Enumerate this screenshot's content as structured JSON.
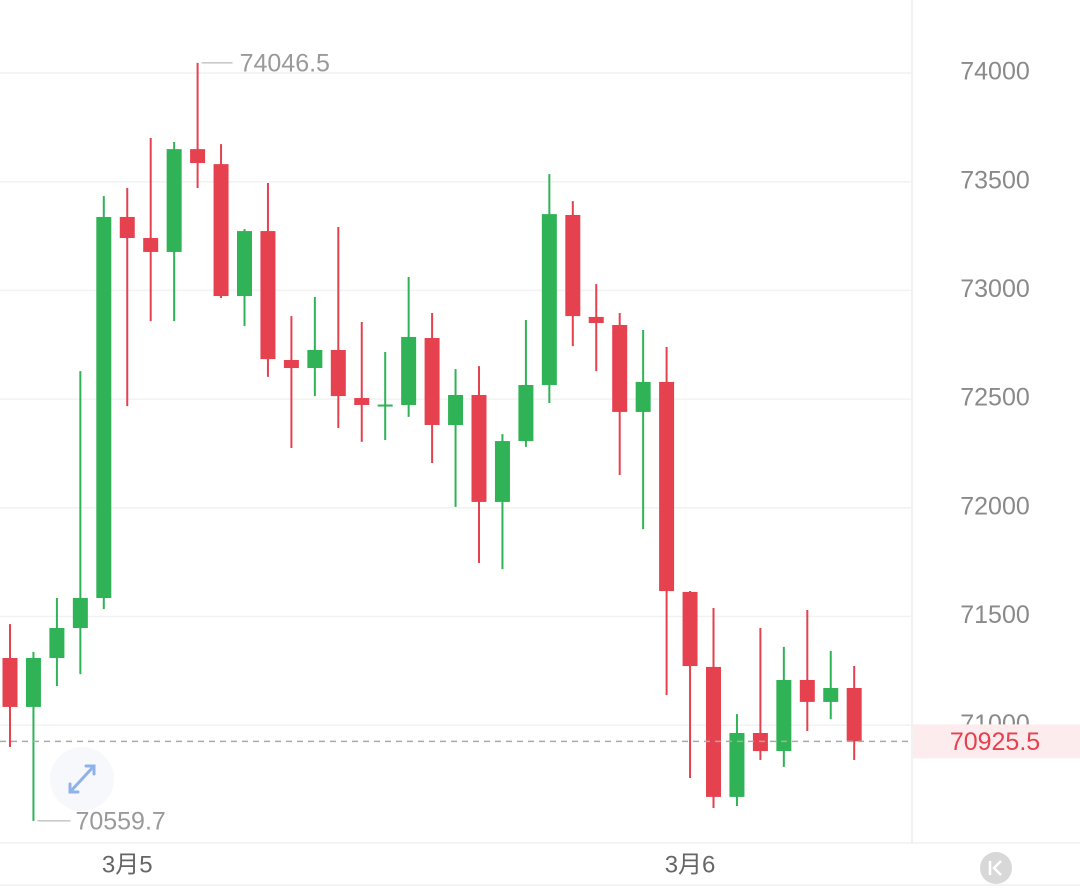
{
  "chart_data": {
    "type": "candlestick",
    "categories": [
      null,
      null,
      null,
      null,
      null,
      "3月5",
      null,
      null,
      null,
      null,
      null,
      null,
      null,
      null,
      null,
      null,
      null,
      null,
      null,
      null,
      null,
      null,
      null,
      null,
      null,
      null,
      null,
      null,
      null,
      "3月6",
      null,
      null,
      null,
      null,
      null,
      null,
      null
    ],
    "open": [
      71309,
      71084,
      71309,
      71447,
      71585,
      73338,
      73241,
      73177,
      73650,
      73581,
      72974,
      73273,
      72680,
      72643,
      72726,
      72505,
      72473,
      72473,
      72781,
      72381,
      72519,
      72027,
      72307,
      72565,
      73347,
      72878,
      72841,
      72441,
      72579,
      71613,
      71268,
      70670,
      70964,
      70881,
      71208,
      71107,
      71171
    ],
    "high": [
      71465,
      71337,
      71585,
      72629,
      73434,
      73471,
      73701,
      73683,
      74046.5,
      73673,
      73282,
      73494,
      72882,
      72970,
      73292,
      72855,
      72717,
      73062,
      72896,
      72638,
      72652,
      72339,
      72864,
      73535,
      73411,
      73029,
      72896,
      72818,
      72740,
      71617,
      71539,
      71051,
      71447,
      71360,
      71530,
      71341,
      71272
    ],
    "low": [
      70900,
      70559.7,
      71180,
      71235,
      71534,
      72468,
      72859,
      72859,
      73471,
      72965,
      72836,
      72602,
      72275,
      72514,
      72367,
      72303,
      72312,
      72418,
      72206,
      72004,
      71746,
      71718,
      72280,
      72482,
      72744,
      72629,
      72151,
      71902,
      71139,
      70757,
      70619,
      70628,
      70840,
      70808,
      70973,
      71028,
      70840
    ],
    "close": [
      71084,
      71309,
      71447,
      71585,
      73338,
      73241,
      73177,
      73650,
      73586,
      72974,
      73273,
      72684,
      72643,
      72726,
      72514,
      72473,
      72475,
      72786,
      72381,
      72519,
      72027,
      72307,
      72565,
      73351,
      72882,
      72850,
      72441,
      72579,
      71617,
      71272,
      70670,
      70964,
      70881,
      71208,
      71107,
      71171,
      70925.5
    ],
    "up_color": "#2fb356",
    "down_color": "#e5414f",
    "ylim": [
      70458,
      74336
    ],
    "yticks": [
      71000,
      71500,
      72000,
      72500,
      73000,
      73500,
      74000
    ],
    "grid": true
  }
}
